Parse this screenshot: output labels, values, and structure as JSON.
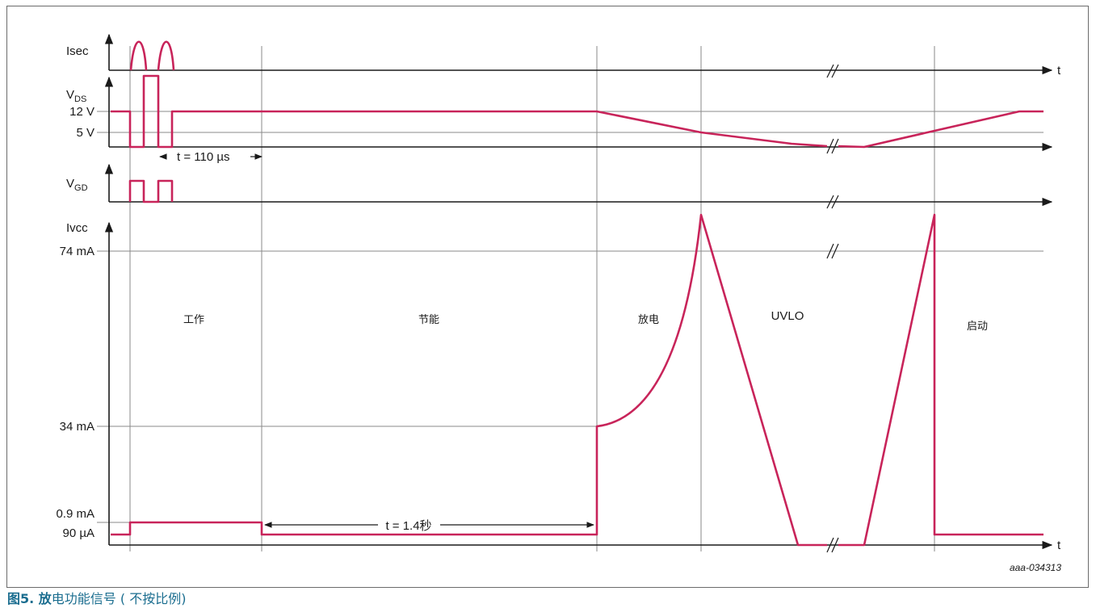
{
  "signals": {
    "isec": "Isec",
    "vds": {
      "main": "V",
      "sub": "DS"
    },
    "vgd": {
      "main": "V",
      "sub": "GD"
    },
    "ivcc": "Ivcc",
    "time_axis": "t"
  },
  "levels": {
    "vds_high": "12 V",
    "vds_low": "5 V",
    "ivcc_peak": "74 mA",
    "ivcc_discharge": "34 mA",
    "ivcc_operate": "0.9 mA",
    "ivcc_standby": "90 µA"
  },
  "durations": {
    "burst_gap": "t = 110 µs",
    "standby_time": "t = 1.4秒"
  },
  "phases": {
    "operate": "工作",
    "standby": "节能",
    "discharge": "放电",
    "uvlo": "UVLO",
    "startup": "启动"
  },
  "figure_id": "aaa-034313",
  "caption": {
    "prefix": "图5. 放",
    "rest": "电功能信号 ( 不按比例)"
  },
  "colors": {
    "signal": "#c8245a",
    "line": "#1a1a1a",
    "grid": "#8a8a8a",
    "caption": "#1a6d8f"
  }
}
